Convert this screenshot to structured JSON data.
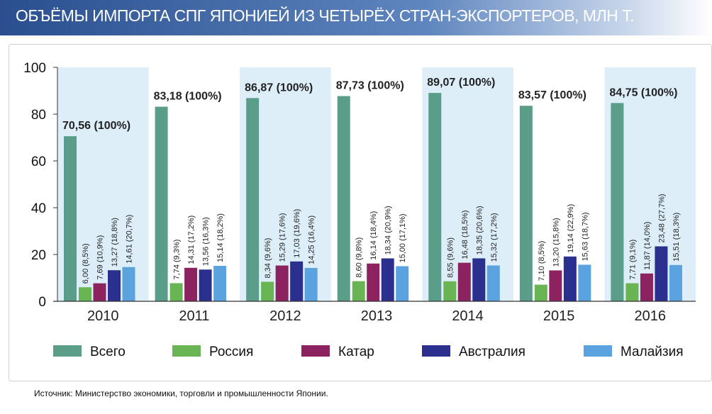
{
  "title": "ОБЪЁМЫ ИМПОРТА СПГ ЯПОНИЕЙ ИЗ ЧЕТЫРЁХ СТРАН-ЭКСПОРТЕРОВ, МЛН Т.",
  "source": "Источник: Министерство экономики, торговли и промышленности Японии.",
  "colors": {
    "total": "#5a9e8a",
    "russia": "#6ab553",
    "qatar": "#8c2260",
    "australia": "#2b2f8d",
    "malaysia": "#5ba3de",
    "band": "#ddeef8"
  },
  "chart_data": {
    "type": "bar",
    "categories": [
      "2010",
      "2011",
      "2012",
      "2013",
      "2014",
      "2015",
      "2016"
    ],
    "ylim": [
      0,
      100
    ],
    "yticks": [
      "0",
      "20",
      "40",
      "60",
      "80",
      "100"
    ],
    "series": [
      {
        "key": "total",
        "name": "Всего",
        "values": [
          70.56,
          83.18,
          86.87,
          87.73,
          89.07,
          83.57,
          84.75
        ],
        "labels": [
          "70,56 (100%)",
          "83,18 (100%)",
          "86,87 (100%)",
          "87,73 (100%)",
          "89,07 (100%)",
          "83,57 (100%)",
          "84,75 (100%)"
        ]
      },
      {
        "key": "russia",
        "name": "Россия",
        "values": [
          6.0,
          7.74,
          8.34,
          8.6,
          8.55,
          7.1,
          7.71
        ],
        "labels": [
          "6,00 (8,5%)",
          "7,74 (9,3%)",
          "8,34 (9,6%)",
          "8,60 (9,8%)",
          "8,55 (9,6%)",
          "7,10 (8,5%)",
          "7,71 (9,1%)"
        ]
      },
      {
        "key": "qatar",
        "name": "Катар",
        "values": [
          7.69,
          14.31,
          15.29,
          16.14,
          16.48,
          13.2,
          11.87
        ],
        "labels": [
          "7,69 (10,9%)",
          "14,31 (17,2%)",
          "15,29 (17,6%)",
          "16,14 (18,4%)",
          "16,48 (18,5%)",
          "13,20 (15,8%)",
          "11,87 (14,0%)"
        ]
      },
      {
        "key": "australia",
        "name": "Австралия",
        "values": [
          13.27,
          13.56,
          17.03,
          18.34,
          18.35,
          19.14,
          23.48
        ],
        "labels": [
          "13,27 (18,8%)",
          "13,56 (16,3%)",
          "17,03 (19,6%)",
          "18,34 (20,9%)",
          "18,35 (20,6%)",
          "19,14 (22,9%)",
          "23,48 (27,7%)"
        ]
      },
      {
        "key": "malaysia",
        "name": "Малайзия",
        "values": [
          14.61,
          15.14,
          14.25,
          15.0,
          15.32,
          15.63,
          15.51
        ],
        "labels": [
          "14,61 (20,7%)",
          "15,14 (18,2%)",
          "14,25 (16,4%)",
          "15,00 (17,1%)",
          "15,32 (17,2%)",
          "15,63 (18,7%)",
          "15,51 (18,3%)"
        ]
      }
    ],
    "legend_position": "bottom",
    "grid": false
  }
}
